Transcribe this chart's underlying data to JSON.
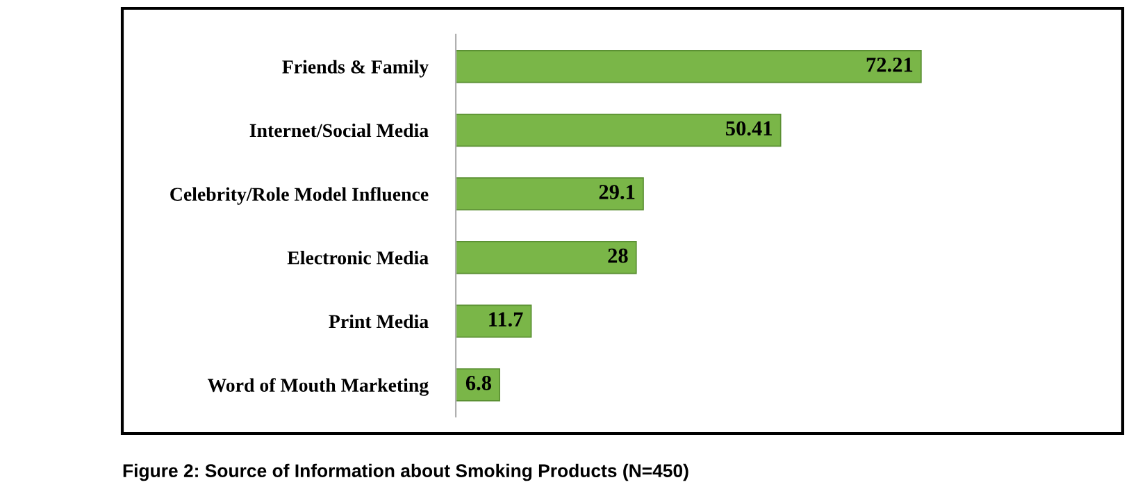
{
  "chart_data": {
    "type": "bar",
    "orientation": "horizontal",
    "categories": [
      "Friends & Family",
      "Internet/Social Media",
      "Celebrity/Role Model Influence",
      "Electronic Media",
      "Print Media",
      "Word of Mouth Marketing"
    ],
    "values": [
      72.21,
      50.41,
      29.1,
      28,
      11.7,
      6.8
    ],
    "color": "#7ab648",
    "data_labels": true,
    "grid": false,
    "legend": false,
    "annotations": [
      "Figure 2: Source of Information about Smoking Products (N=450)"
    ]
  }
}
